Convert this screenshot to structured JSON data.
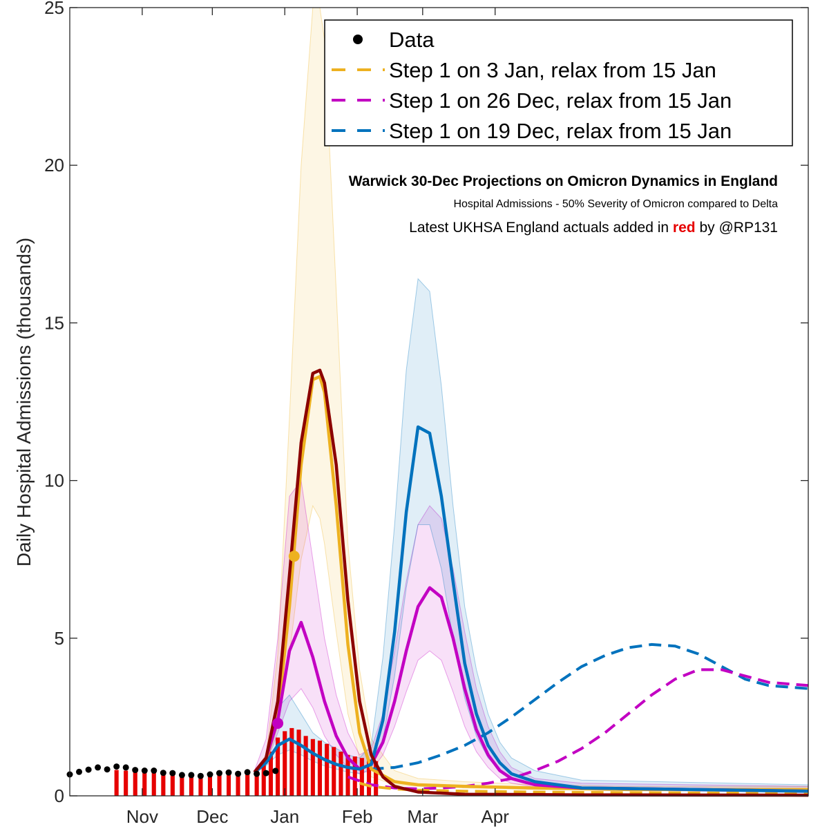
{
  "chart_data": {
    "type": "line",
    "title": "Warwick 30-Dec Projections on Omicron Dynamics in England",
    "subtitle": "Hospital Admissions - 50% Severity of Omicron compared to Delta",
    "credit": {
      "before": "Latest UKHSA England actuals added in ",
      "highlight": "red",
      "after": " by @RP131"
    },
    "ylabel": "Daily Hospital Admissions (thousands)",
    "xlabel": "",
    "ylim": [
      0,
      25
    ],
    "yticks": [
      "0",
      "5",
      "10",
      "15",
      "20",
      "25"
    ],
    "xlim": [
      -19,
      297
    ],
    "xticks": [
      {
        "label": "Nov",
        "day": 12
      },
      {
        "label": "Dec",
        "day": 42
      },
      {
        "label": "Jan",
        "day": 73
      },
      {
        "label": "Feb",
        "day": 104
      },
      {
        "label": "Mar",
        "day": 132
      },
      {
        "label": "Apr",
        "day": 163
      }
    ],
    "x_units": "days since 20 Oct 2021",
    "grid": false,
    "legend_position": "top-right",
    "legend": [
      {
        "label": "Data",
        "style": "marker",
        "color": "#000000"
      },
      {
        "label": "Step 1 on 3 Jan, relax from 15 Jan",
        "style": "dashed",
        "color": "#EDB120"
      },
      {
        "label": "Step 1 on 26 Dec, relax from 15 Jan",
        "style": "dashed",
        "color": "#C200C2"
      },
      {
        "label": "Step 1 on 19 Dec, relax from 15 Jan",
        "style": "dashed",
        "color": "#0072BD"
      }
    ],
    "colors": {
      "orange": "#EDB120",
      "magenta": "#C200C2",
      "blue": "#0072BD",
      "actuals": "#E60000",
      "model_red": "#8B0000",
      "data": "#000000"
    },
    "data_points": {
      "x": [
        -19,
        -15,
        -11,
        -7,
        -3,
        1,
        5,
        9,
        13,
        17,
        21,
        25,
        29,
        33,
        37,
        41,
        45,
        49,
        53,
        57,
        61,
        65,
        69
      ],
      "y": [
        0.68,
        0.76,
        0.83,
        0.9,
        0.84,
        0.93,
        0.9,
        0.82,
        0.8,
        0.8,
        0.73,
        0.72,
        0.66,
        0.66,
        0.63,
        0.68,
        0.72,
        0.74,
        0.7,
        0.75,
        0.7,
        0.72,
        0.79
      ]
    },
    "actuals": {
      "x": [
        1,
        5,
        9,
        13,
        17,
        21,
        25,
        29,
        33,
        37,
        41,
        45,
        49,
        53,
        57,
        61,
        64,
        67,
        70,
        73,
        76,
        79,
        82,
        85,
        88,
        91,
        94,
        97,
        100,
        103,
        106,
        109,
        112
      ],
      "y": [
        0.82,
        0.8,
        0.78,
        0.76,
        0.74,
        0.71,
        0.7,
        0.68,
        0.66,
        0.64,
        0.66,
        0.7,
        0.72,
        0.72,
        0.75,
        0.82,
        1.05,
        1.4,
        1.85,
        2.05,
        2.15,
        2.1,
        1.9,
        1.8,
        1.75,
        1.65,
        1.55,
        1.4,
        1.3,
        1.25,
        1.2,
        1.15,
        1.1
      ]
    },
    "markers": [
      {
        "x": 70,
        "y": 2.3,
        "color": "#C200C2"
      },
      {
        "x": 77,
        "y": 7.6,
        "color": "#EDB120"
      }
    ],
    "series": [
      {
        "color": "#EDB120",
        "x": [
          60,
          65,
          70,
          75,
          80,
          85,
          88,
          90,
          95,
          100,
          105,
          110,
          120,
          130,
          150,
          180,
          220,
          297
        ],
        "y": [
          0.75,
          1.1,
          2.5,
          6.0,
          10.5,
          13.2,
          13.3,
          12.8,
          9.2,
          4.8,
          2.0,
          0.85,
          0.45,
          0.35,
          0.3,
          0.25,
          0.2,
          0.2
        ],
        "band": {
          "low": [
            0.7,
            1.0,
            2.2,
            4.5,
            7.5,
            9.2,
            8.8,
            8.0,
            5.2,
            2.6,
            1.2,
            0.6,
            0.35,
            0.3,
            0.25,
            0.2,
            0.18,
            0.18
          ],
          "high": [
            0.8,
            1.3,
            4.5,
            12.0,
            20.0,
            25.0,
            25.0,
            24.0,
            16.0,
            8.0,
            4.0,
            1.8,
            0.8,
            0.55,
            0.45,
            0.35,
            0.3,
            0.3
          ]
        }
      },
      {
        "color": "#C200C2",
        "x": [
          60,
          65,
          70,
          75,
          80,
          85,
          90,
          95,
          100,
          105,
          110,
          115,
          120,
          125,
          130,
          135,
          140,
          145,
          150,
          155,
          160,
          165,
          170,
          180,
          200,
          297
        ],
        "y": [
          0.75,
          1.2,
          2.4,
          4.6,
          5.5,
          4.4,
          3.0,
          1.9,
          1.2,
          0.85,
          1.0,
          1.7,
          3.0,
          4.6,
          6.0,
          6.6,
          6.3,
          5.0,
          3.4,
          2.1,
          1.3,
          0.8,
          0.55,
          0.35,
          0.25,
          0.15
        ],
        "band": {
          "low": [
            0.7,
            1.0,
            2.0,
            3.0,
            3.4,
            2.8,
            1.9,
            1.3,
            0.9,
            0.7,
            0.8,
            1.3,
            2.2,
            3.3,
            4.3,
            4.6,
            4.3,
            3.3,
            2.2,
            1.4,
            0.9,
            0.55,
            0.4,
            0.28,
            0.2,
            0.12
          ],
          "high": [
            0.8,
            1.8,
            5.0,
            9.5,
            10.0,
            7.5,
            5.0,
            3.2,
            2.0,
            1.3,
            1.5,
            2.6,
            4.6,
            6.8,
            8.6,
            9.2,
            8.8,
            7.2,
            5.2,
            3.4,
            2.2,
            1.4,
            0.9,
            0.55,
            0.4,
            0.3
          ]
        }
      },
      {
        "color": "#0072BD",
        "x": [
          60,
          65,
          70,
          75,
          80,
          85,
          90,
          95,
          100,
          105,
          110,
          115,
          120,
          125,
          130,
          135,
          140,
          145,
          150,
          155,
          160,
          165,
          170,
          180,
          200,
          297
        ],
        "y": [
          0.75,
          1.05,
          1.6,
          1.8,
          1.6,
          1.35,
          1.15,
          1.0,
          0.9,
          0.85,
          1.0,
          2.4,
          5.2,
          9.0,
          11.7,
          11.5,
          9.5,
          6.8,
          4.2,
          2.6,
          1.6,
          1.05,
          0.7,
          0.45,
          0.25,
          0.15
        ],
        "band": {
          "low": [
            0.7,
            0.95,
            1.3,
            1.45,
            1.3,
            1.1,
            0.95,
            0.85,
            0.75,
            0.7,
            0.85,
            1.8,
            3.8,
            6.6,
            8.6,
            8.6,
            7.2,
            5.0,
            3.1,
            1.9,
            1.2,
            0.8,
            0.55,
            0.35,
            0.2,
            0.1
          ],
          "high": [
            0.8,
            1.2,
            2.8,
            3.2,
            2.6,
            2.0,
            1.7,
            1.5,
            1.3,
            1.2,
            1.6,
            4.4,
            8.6,
            13.5,
            16.4,
            16.0,
            13.0,
            9.2,
            6.0,
            4.0,
            2.6,
            1.7,
            1.2,
            0.8,
            0.5,
            0.35
          ]
        }
      },
      {
        "color": "#8B0000",
        "x": [
          60,
          65,
          70,
          75,
          80,
          85,
          88,
          90,
          95,
          100,
          105,
          110,
          115,
          120,
          130,
          150,
          200,
          297
        ],
        "y": [
          0.75,
          1.2,
          3.0,
          7.0,
          11.2,
          13.4,
          13.5,
          13.1,
          10.5,
          6.2,
          3.0,
          1.3,
          0.6,
          0.3,
          0.12,
          0.05,
          0.03,
          0.02
        ]
      }
    ],
    "dashed_series": [
      {
        "color": "#0072BD",
        "x": [
          110,
          120,
          130,
          140,
          150,
          160,
          170,
          180,
          190,
          200,
          210,
          220,
          230,
          240,
          250,
          260,
          270,
          280,
          297
        ],
        "y": [
          0.85,
          0.9,
          1.05,
          1.3,
          1.6,
          2.0,
          2.5,
          3.05,
          3.6,
          4.1,
          4.45,
          4.7,
          4.8,
          4.75,
          4.5,
          4.1,
          3.7,
          3.5,
          3.4
        ]
      },
      {
        "color": "#C200C2",
        "x": [
          100,
          110,
          120,
          130,
          140,
          150,
          160,
          170,
          180,
          190,
          200,
          210,
          220,
          230,
          240,
          250,
          260,
          270,
          280,
          297
        ],
        "y": [
          0.6,
          0.35,
          0.25,
          0.22,
          0.25,
          0.3,
          0.4,
          0.55,
          0.8,
          1.1,
          1.5,
          2.0,
          2.6,
          3.2,
          3.7,
          4.0,
          4.0,
          3.8,
          3.6,
          3.5
        ]
      },
      {
        "color": "#EDB120",
        "x": [
          105,
          110,
          120,
          130,
          150,
          180,
          220,
          297
        ],
        "y": [
          0.4,
          0.3,
          0.22,
          0.18,
          0.15,
          0.12,
          0.1,
          0.08
        ]
      }
    ]
  }
}
